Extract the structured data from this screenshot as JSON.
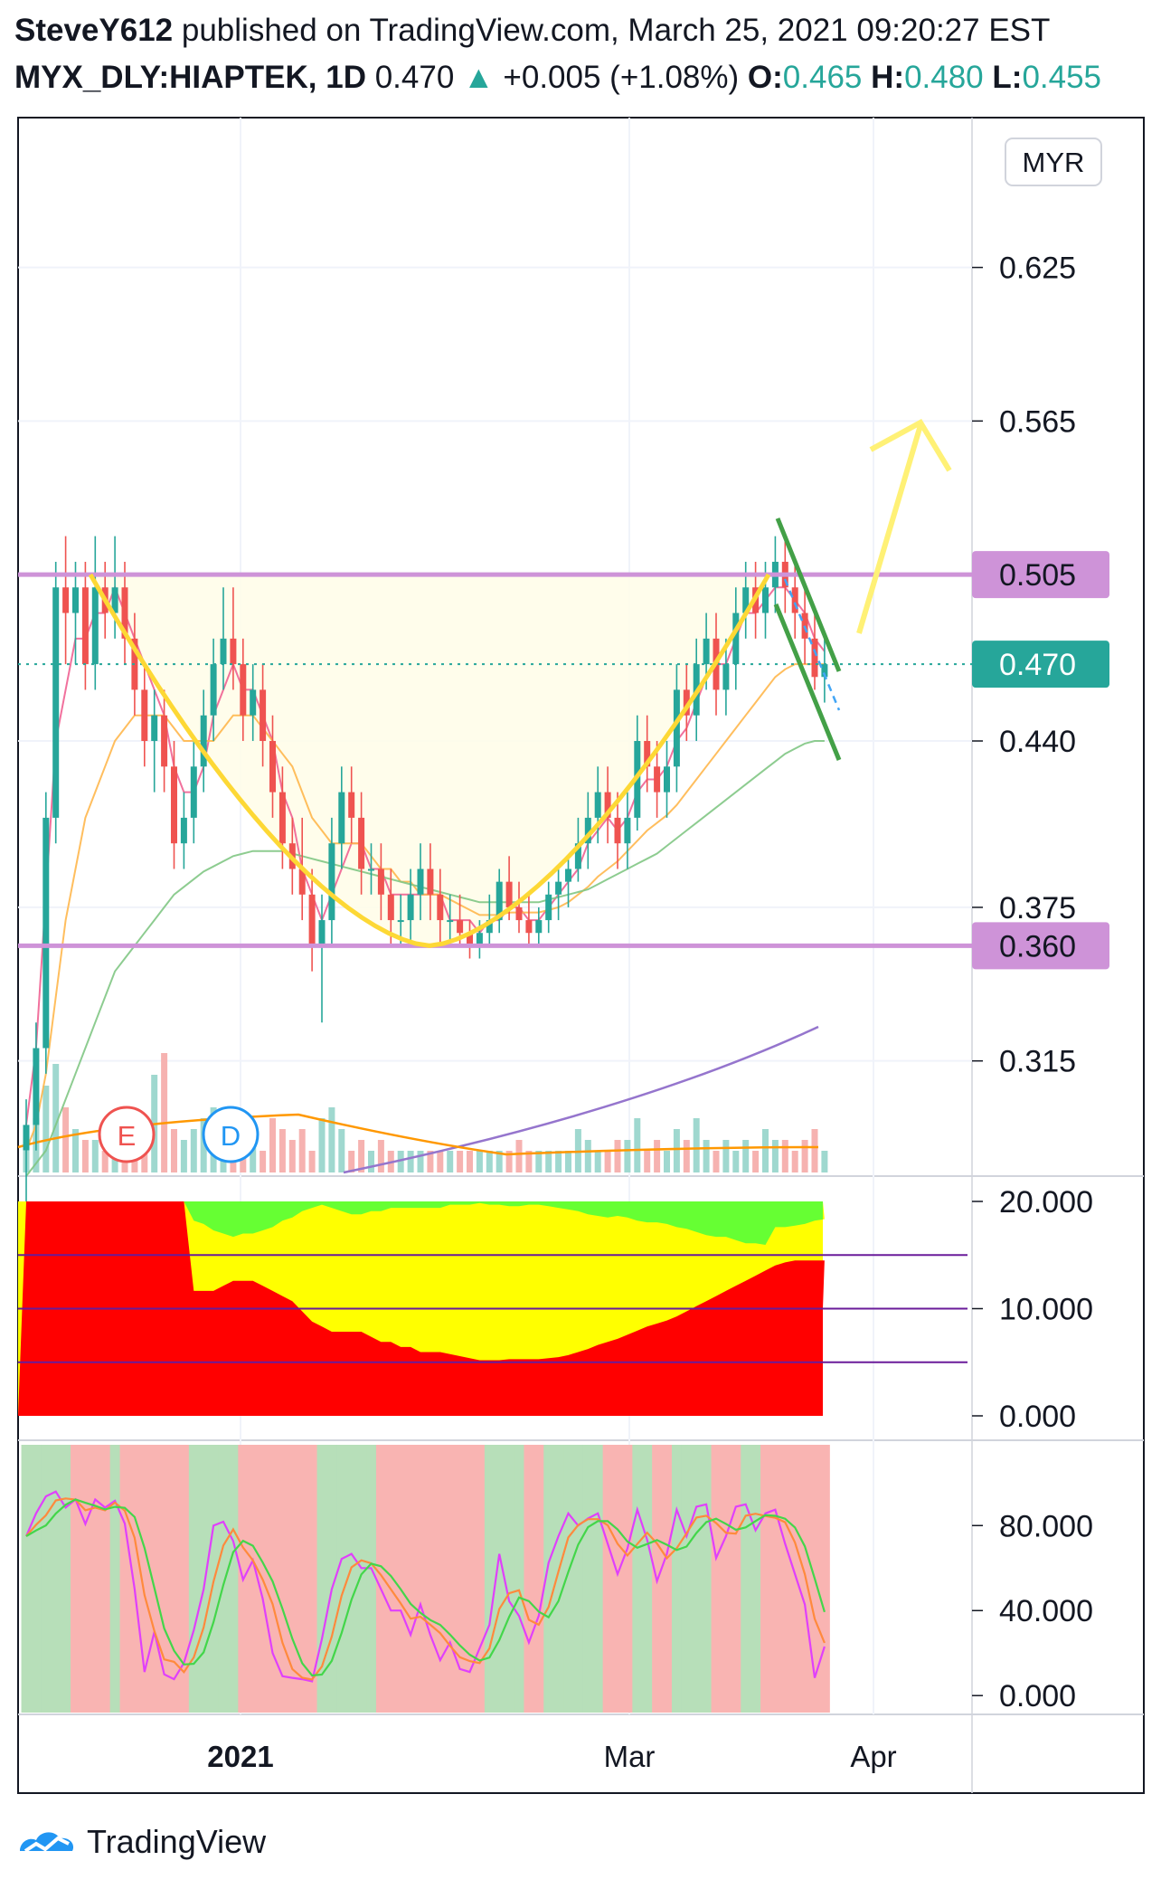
{
  "header": {
    "publisher": "SteveY612",
    "published_text": "published on TradingView.com, March 25, 2021 09:20:27 EST",
    "symbol": "MYX_DLY:HIAPTEK, 1D",
    "last_price": "0.470",
    "change": "+0.005 (+1.08%)",
    "o_label": "O:",
    "o_value": "0.465",
    "h_label": "H:",
    "h_value": "0.480",
    "l_label": "L:",
    "l_value": "0.455"
  },
  "colors": {
    "up": "#26a69a",
    "down": "#ef5350",
    "band": "#ce93d8",
    "cup": "#fdd835",
    "arrow": "#fff176",
    "channel": "#43a047",
    "red_fill": "#ff0000",
    "yellow_fill": "#ffff00",
    "green_fill": "#66ff33"
  },
  "currency_label": "MYR",
  "footer_brand": "TradingView",
  "chart_data": [
    {
      "type": "candlestick",
      "name": "price",
      "y_ticks": [
        "0.625",
        "0.565",
        "0.440",
        "0.375",
        "0.315"
      ],
      "y_tick_values": [
        0.625,
        0.565,
        0.44,
        0.375,
        0.315
      ],
      "ylim": [
        0.27,
        0.68
      ],
      "x_labels": [
        "2021",
        "Mar",
        "Apr"
      ],
      "resistance_label": "0.505",
      "support_label": "0.360",
      "last_label": "0.470",
      "last_value": 0.47,
      "resistance": 0.505,
      "support": 0.36,
      "event_markers": [
        "E",
        "D"
      ],
      "ohlc": [
        [
          0.28,
          0.3,
          0.26,
          0.29
        ],
        [
          0.29,
          0.33,
          0.28,
          0.32
        ],
        [
          0.32,
          0.42,
          0.31,
          0.41
        ],
        [
          0.41,
          0.51,
          0.4,
          0.5
        ],
        [
          0.5,
          0.52,
          0.47,
          0.49
        ],
        [
          0.49,
          0.51,
          0.47,
          0.5
        ],
        [
          0.5,
          0.51,
          0.46,
          0.47
        ],
        [
          0.47,
          0.52,
          0.46,
          0.5
        ],
        [
          0.5,
          0.51,
          0.48,
          0.49
        ],
        [
          0.49,
          0.52,
          0.48,
          0.5
        ],
        [
          0.5,
          0.51,
          0.47,
          0.48
        ],
        [
          0.48,
          0.49,
          0.45,
          0.46
        ],
        [
          0.46,
          0.47,
          0.43,
          0.44
        ],
        [
          0.44,
          0.46,
          0.42,
          0.45
        ],
        [
          0.45,
          0.46,
          0.42,
          0.43
        ],
        [
          0.43,
          0.44,
          0.39,
          0.4
        ],
        [
          0.4,
          0.42,
          0.39,
          0.41
        ],
        [
          0.41,
          0.44,
          0.4,
          0.43
        ],
        [
          0.43,
          0.46,
          0.42,
          0.45
        ],
        [
          0.45,
          0.48,
          0.44,
          0.47
        ],
        [
          0.47,
          0.5,
          0.46,
          0.48
        ],
        [
          0.48,
          0.5,
          0.46,
          0.47
        ],
        [
          0.47,
          0.48,
          0.44,
          0.45
        ],
        [
          0.45,
          0.47,
          0.44,
          0.46
        ],
        [
          0.46,
          0.47,
          0.43,
          0.44
        ],
        [
          0.44,
          0.45,
          0.41,
          0.42
        ],
        [
          0.42,
          0.43,
          0.39,
          0.4
        ],
        [
          0.4,
          0.41,
          0.38,
          0.39
        ],
        [
          0.39,
          0.41,
          0.37,
          0.38
        ],
        [
          0.38,
          0.39,
          0.35,
          0.36
        ],
        [
          0.36,
          0.38,
          0.33,
          0.37
        ],
        [
          0.37,
          0.41,
          0.36,
          0.4
        ],
        [
          0.4,
          0.43,
          0.39,
          0.42
        ],
        [
          0.42,
          0.43,
          0.4,
          0.41
        ],
        [
          0.41,
          0.42,
          0.38,
          0.39
        ],
        [
          0.39,
          0.4,
          0.38,
          0.39
        ],
        [
          0.39,
          0.4,
          0.37,
          0.38
        ],
        [
          0.38,
          0.39,
          0.36,
          0.37
        ],
        [
          0.37,
          0.38,
          0.36,
          0.37
        ],
        [
          0.37,
          0.39,
          0.36,
          0.38
        ],
        [
          0.38,
          0.4,
          0.37,
          0.39
        ],
        [
          0.39,
          0.4,
          0.37,
          0.38
        ],
        [
          0.38,
          0.39,
          0.36,
          0.37
        ],
        [
          0.37,
          0.38,
          0.36,
          0.37
        ],
        [
          0.37,
          0.38,
          0.36,
          0.365
        ],
        [
          0.365,
          0.37,
          0.355,
          0.36
        ],
        [
          0.36,
          0.37,
          0.355,
          0.365
        ],
        [
          0.365,
          0.38,
          0.36,
          0.37
        ],
        [
          0.37,
          0.39,
          0.365,
          0.385
        ],
        [
          0.385,
          0.395,
          0.37,
          0.375
        ],
        [
          0.375,
          0.385,
          0.365,
          0.37
        ],
        [
          0.37,
          0.38,
          0.36,
          0.365
        ],
        [
          0.365,
          0.375,
          0.36,
          0.37
        ],
        [
          0.37,
          0.385,
          0.365,
          0.38
        ],
        [
          0.38,
          0.39,
          0.37,
          0.385
        ],
        [
          0.385,
          0.395,
          0.375,
          0.39
        ],
        [
          0.39,
          0.41,
          0.385,
          0.4
        ],
        [
          0.4,
          0.42,
          0.39,
          0.41
        ],
        [
          0.41,
          0.43,
          0.4,
          0.42
        ],
        [
          0.42,
          0.43,
          0.4,
          0.41
        ],
        [
          0.41,
          0.42,
          0.39,
          0.4
        ],
        [
          0.4,
          0.42,
          0.39,
          0.41
        ],
        [
          0.41,
          0.45,
          0.405,
          0.44
        ],
        [
          0.44,
          0.45,
          0.42,
          0.43
        ],
        [
          0.43,
          0.44,
          0.41,
          0.42
        ],
        [
          0.42,
          0.44,
          0.41,
          0.43
        ],
        [
          0.43,
          0.47,
          0.42,
          0.46
        ],
        [
          0.46,
          0.47,
          0.44,
          0.45
        ],
        [
          0.45,
          0.48,
          0.44,
          0.47
        ],
        [
          0.47,
          0.49,
          0.46,
          0.48
        ],
        [
          0.48,
          0.49,
          0.45,
          0.46
        ],
        [
          0.46,
          0.48,
          0.45,
          0.47
        ],
        [
          0.47,
          0.5,
          0.46,
          0.49
        ],
        [
          0.49,
          0.51,
          0.48,
          0.5
        ],
        [
          0.5,
          0.51,
          0.48,
          0.49
        ],
        [
          0.49,
          0.51,
          0.48,
          0.5
        ],
        [
          0.5,
          0.52,
          0.49,
          0.51
        ],
        [
          0.51,
          0.52,
          0.49,
          0.5
        ],
        [
          0.5,
          0.51,
          0.48,
          0.49
        ],
        [
          0.49,
          0.5,
          0.47,
          0.48
        ],
        [
          0.48,
          0.49,
          0.46,
          0.465
        ],
        [
          0.465,
          0.48,
          0.455,
          0.47
        ]
      ],
      "series": [
        {
          "values": [
            0.29,
            0.32,
            0.38,
            0.44,
            0.46,
            0.48,
            0.48,
            0.49,
            0.49,
            0.5,
            0.49,
            0.48,
            0.47,
            0.46,
            0.45,
            0.43,
            0.42,
            0.42,
            0.43,
            0.45,
            0.46,
            0.47,
            0.46,
            0.46,
            0.45,
            0.44,
            0.42,
            0.41,
            0.39,
            0.38,
            0.37,
            0.38,
            0.39,
            0.4,
            0.4,
            0.39,
            0.39,
            0.38,
            0.38,
            0.38,
            0.38,
            0.38,
            0.38,
            0.37,
            0.37,
            0.37,
            0.365,
            0.37,
            0.37,
            0.375,
            0.375,
            0.37,
            0.37,
            0.375,
            0.38,
            0.385,
            0.39,
            0.4,
            0.405,
            0.41,
            0.405,
            0.41,
            0.42,
            0.425,
            0.425,
            0.43,
            0.44,
            0.445,
            0.455,
            0.465,
            0.47,
            0.47,
            0.48,
            0.49,
            0.49,
            0.495,
            0.5,
            0.5,
            0.495,
            0.49,
            0.48,
            0.475
          ]
        },
        {
          "values": [
            0.28,
            0.29,
            0.31,
            0.34,
            0.37,
            0.39,
            0.41,
            0.42,
            0.43,
            0.44,
            0.445,
            0.45,
            0.45,
            0.45,
            0.45,
            0.445,
            0.44,
            0.44,
            0.44,
            0.44,
            0.445,
            0.45,
            0.45,
            0.45,
            0.445,
            0.44,
            0.435,
            0.43,
            0.42,
            0.41,
            0.405,
            0.4,
            0.4,
            0.4,
            0.4,
            0.395,
            0.39,
            0.39,
            0.385,
            0.385,
            0.38,
            0.38,
            0.38,
            0.378,
            0.376,
            0.374,
            0.372,
            0.372,
            0.372,
            0.373,
            0.373,
            0.373,
            0.373,
            0.374,
            0.375,
            0.377,
            0.38,
            0.383,
            0.387,
            0.39,
            0.393,
            0.397,
            0.401,
            0.405,
            0.408,
            0.411,
            0.415,
            0.42,
            0.425,
            0.43,
            0.435,
            0.44,
            0.445,
            0.45,
            0.455,
            0.46,
            0.465,
            0.468,
            0.47,
            0.47,
            0.47,
            0.47
          ]
        },
        {
          "values": [
            0.27,
            0.275,
            0.28,
            0.29,
            0.3,
            0.31,
            0.32,
            0.33,
            0.34,
            0.35,
            0.355,
            0.36,
            0.365,
            0.37,
            0.375,
            0.38,
            0.383,
            0.386,
            0.389,
            0.391,
            0.393,
            0.395,
            0.396,
            0.397,
            0.397,
            0.397,
            0.397,
            0.396,
            0.395,
            0.394,
            0.393,
            0.392,
            0.391,
            0.39,
            0.389,
            0.388,
            0.387,
            0.386,
            0.385,
            0.384,
            0.383,
            0.382,
            0.381,
            0.38,
            0.379,
            0.378,
            0.377,
            0.377,
            0.377,
            0.377,
            0.377,
            0.377,
            0.377,
            0.378,
            0.379,
            0.38,
            0.381,
            0.382,
            0.384,
            0.386,
            0.388,
            0.39,
            0.392,
            0.394,
            0.396,
            0.399,
            0.402,
            0.405,
            0.408,
            0.411,
            0.414,
            0.417,
            0.42,
            0.423,
            0.426,
            0.429,
            0.432,
            0.435,
            0.437,
            0.439,
            0.44,
            0.44
          ]
        }
      ]
    },
    {
      "type": "bar",
      "name": "volume",
      "values": [
        2,
        5,
        8,
        10,
        6,
        4,
        3,
        3,
        2,
        4,
        5,
        3,
        3,
        9,
        11,
        4,
        3,
        4,
        5,
        6,
        5,
        6,
        4,
        4,
        2,
        5,
        4,
        3,
        4,
        2,
        5,
        6,
        4,
        2,
        3,
        2,
        3,
        2,
        2,
        2,
        2,
        2,
        2,
        2,
        2,
        2,
        2,
        2,
        2,
        2,
        3,
        2,
        2,
        2,
        2,
        2,
        4,
        3,
        2,
        2,
        3,
        3,
        5,
        2,
        3,
        2,
        4,
        3,
        5,
        3,
        2,
        3,
        2,
        3,
        2,
        4,
        3,
        3,
        2,
        3,
        4,
        2
      ]
    },
    {
      "type": "area",
      "name": "oscillator",
      "y_ticks": [
        "20.000",
        "10.000",
        "0.000"
      ],
      "y_tick_values": [
        20,
        10,
        0
      ],
      "ylim": [
        0,
        20
      ],
      "levels": [
        15,
        10,
        5
      ]
    },
    {
      "type": "line",
      "name": "stochastic",
      "y_ticks": [
        "80.000",
        "40.000",
        "0.000"
      ],
      "y_tick_values": [
        80,
        40,
        0
      ],
      "ylim": [
        -8,
        118
      ]
    }
  ]
}
